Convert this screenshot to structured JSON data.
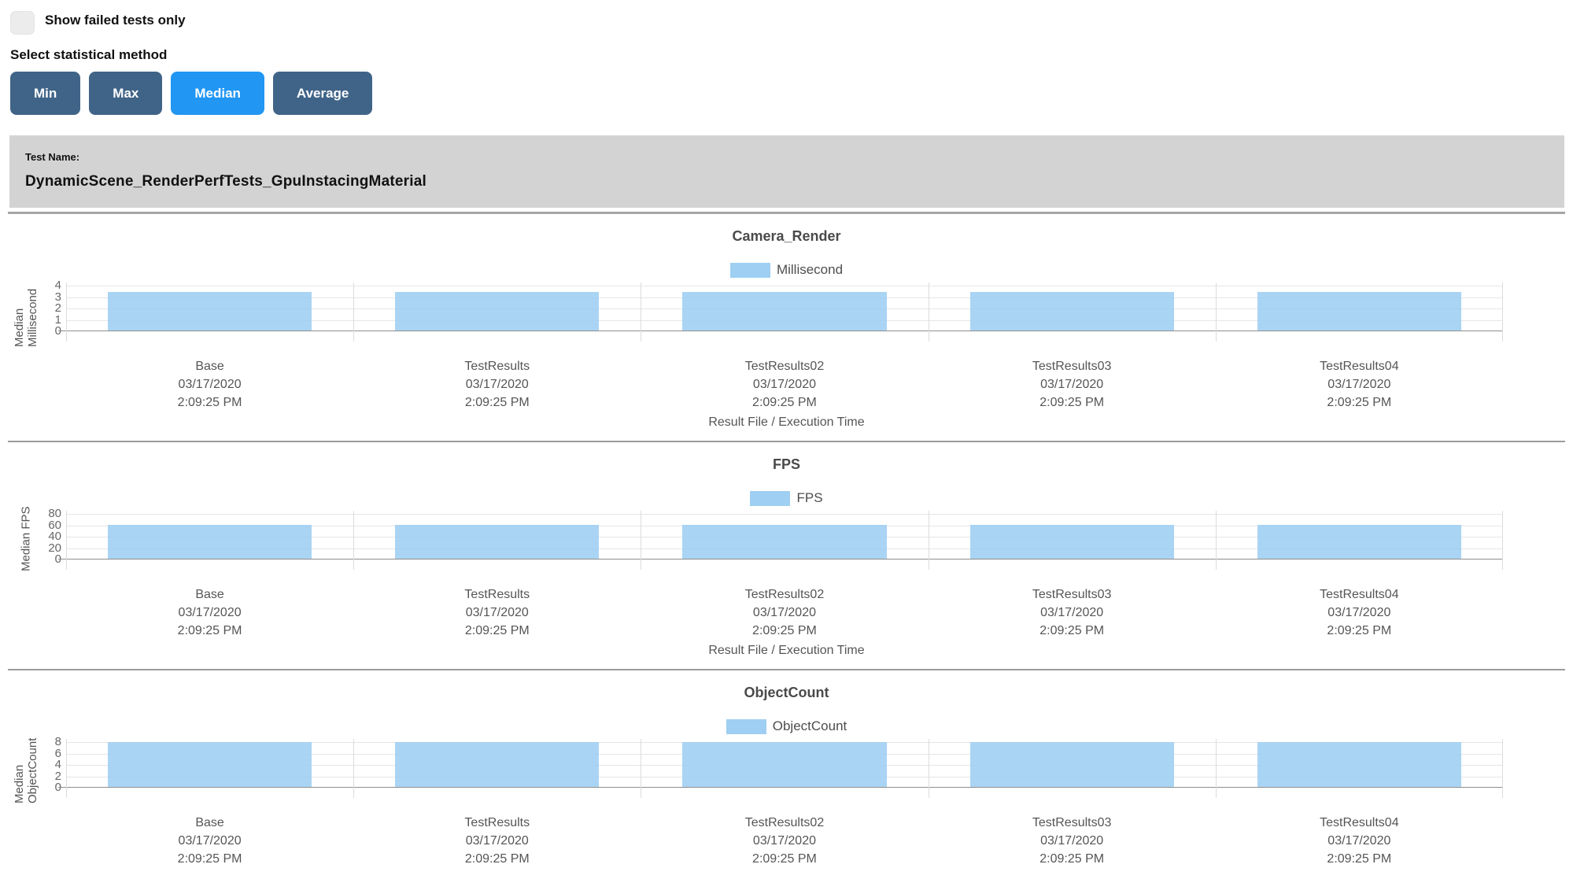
{
  "controls": {
    "show_failed_label": "Show failed tests only",
    "show_failed_checked": false,
    "stat_method_label": "Select statistical method",
    "buttons": [
      {
        "label": "Min",
        "selected": false
      },
      {
        "label": "Max",
        "selected": false
      },
      {
        "label": "Median",
        "selected": true
      },
      {
        "label": "Average",
        "selected": false
      }
    ]
  },
  "test_header": {
    "label": "Test Name:",
    "name": "DynamicScene_RenderPerfTests_GpuInstacingMaterial"
  },
  "colors": {
    "bar_fill": "#9fcff2",
    "button_default": "#406488",
    "button_selected": "#2196f3",
    "header_background": "#d3d3d3"
  },
  "chart_data": [
    {
      "type": "bar",
      "title": "Camera_Render",
      "legend": "Millisecond",
      "ylabel": "Median Millisecond",
      "xlabel": "Result File / Execution Time",
      "ylim": [
        0,
        4
      ],
      "yticks": [
        4,
        3,
        2,
        1,
        0
      ],
      "grid": true,
      "legend_position": "top-center",
      "categories": [
        {
          "name": "Base",
          "date": "03/17/2020",
          "time": "2:09:25 PM"
        },
        {
          "name": "TestResults",
          "date": "03/17/2020",
          "time": "2:09:25 PM"
        },
        {
          "name": "TestResults02",
          "date": "03/17/2020",
          "time": "2:09:25 PM"
        },
        {
          "name": "TestResults03",
          "date": "03/17/2020",
          "time": "2:09:25 PM"
        },
        {
          "name": "TestResults04",
          "date": "03/17/2020",
          "time": "2:09:25 PM"
        }
      ],
      "values": [
        3.4,
        3.4,
        3.4,
        3.4,
        3.4
      ]
    },
    {
      "type": "bar",
      "title": "FPS",
      "legend": "FPS",
      "ylabel": "Median FPS",
      "xlabel": "Result File / Execution Time",
      "ylim": [
        0,
        80
      ],
      "yticks": [
        80,
        60,
        40,
        20,
        0
      ],
      "grid": true,
      "legend_position": "top-center",
      "categories": [
        {
          "name": "Base",
          "date": "03/17/2020",
          "time": "2:09:25 PM"
        },
        {
          "name": "TestResults",
          "date": "03/17/2020",
          "time": "2:09:25 PM"
        },
        {
          "name": "TestResults02",
          "date": "03/17/2020",
          "time": "2:09:25 PM"
        },
        {
          "name": "TestResults03",
          "date": "03/17/2020",
          "time": "2:09:25 PM"
        },
        {
          "name": "TestResults04",
          "date": "03/17/2020",
          "time": "2:09:25 PM"
        }
      ],
      "values": [
        59,
        59,
        59,
        59,
        59
      ]
    },
    {
      "type": "bar",
      "title": "ObjectCount",
      "legend": "ObjectCount",
      "ylabel": "Median ObjectCount",
      "xlabel": "",
      "ylim": [
        0,
        8
      ],
      "yticks": [
        8,
        6,
        4,
        2,
        0
      ],
      "grid": true,
      "legend_position": "top-center",
      "categories": [
        {
          "name": "Base",
          "date": "03/17/2020",
          "time": "2:09:25 PM"
        },
        {
          "name": "TestResults",
          "date": "03/17/2020",
          "time": "2:09:25 PM"
        },
        {
          "name": "TestResults02",
          "date": "03/17/2020",
          "time": "2:09:25 PM"
        },
        {
          "name": "TestResults03",
          "date": "03/17/2020",
          "time": "2:09:25 PM"
        },
        {
          "name": "TestResults04",
          "date": "03/17/2020",
          "time": "2:09:25 PM"
        }
      ],
      "values": [
        7.8,
        7.8,
        7.8,
        7.8,
        7.8
      ]
    }
  ]
}
